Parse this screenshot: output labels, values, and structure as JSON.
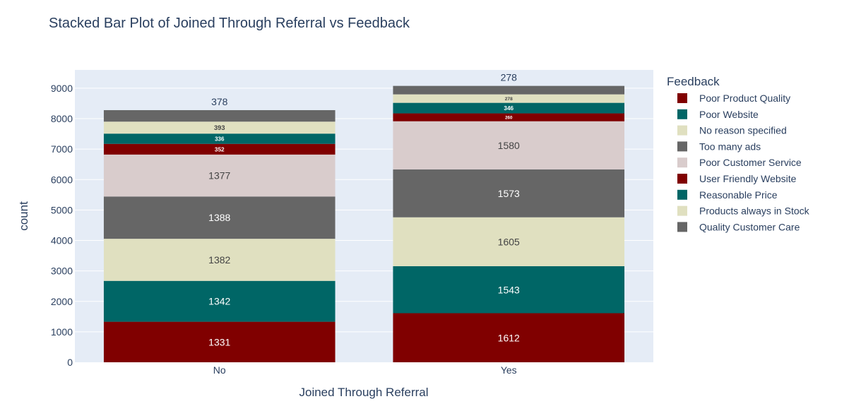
{
  "chart_data": {
    "type": "bar",
    "stacked": true,
    "title": "Stacked Bar Plot of Joined Through Referral vs Feedback",
    "xlabel": "Joined Through Referral",
    "ylabel": "count",
    "categories": [
      "No",
      "Yes"
    ],
    "ylim": [
      0,
      9600
    ],
    "yticks": [
      0,
      1000,
      2000,
      3000,
      4000,
      5000,
      6000,
      7000,
      8000,
      9000
    ],
    "grid": true,
    "legend_title": "Feedback",
    "legend_position": "right",
    "series": [
      {
        "name": "Poor Product Quality",
        "values": [
          1331,
          1612
        ],
        "color": "#800000",
        "label_color": "#ffffff"
      },
      {
        "name": "Poor Website",
        "values": [
          1342,
          1543
        ],
        "color": "#006666",
        "label_color": "#ffffff"
      },
      {
        "name": "No reason specified",
        "values": [
          1382,
          1605
        ],
        "color": "#e0e0c0",
        "label_color": "#444444"
      },
      {
        "name": "Too many ads",
        "values": [
          1388,
          1573
        ],
        "color": "#666666",
        "label_color": "#ffffff"
      },
      {
        "name": "Poor Customer Service",
        "values": [
          1377,
          1580
        ],
        "color": "#d9cccc",
        "label_color": "#444444"
      },
      {
        "name": "User Friendly Website",
        "values": [
          352,
          260
        ],
        "color": "#800000",
        "label_color": "#ffffff"
      },
      {
        "name": "Reasonable Price",
        "values": [
          336,
          346
        ],
        "color": "#006666",
        "label_color": "#ffffff"
      },
      {
        "name": "Products always in Stock",
        "values": [
          393,
          278
        ],
        "color": "#e0e0c0",
        "label_color": "#444444"
      },
      {
        "name": "Quality Customer Care",
        "values": [
          378,
          278
        ],
        "color": "#666666",
        "label_color": "#ffffff"
      }
    ]
  }
}
